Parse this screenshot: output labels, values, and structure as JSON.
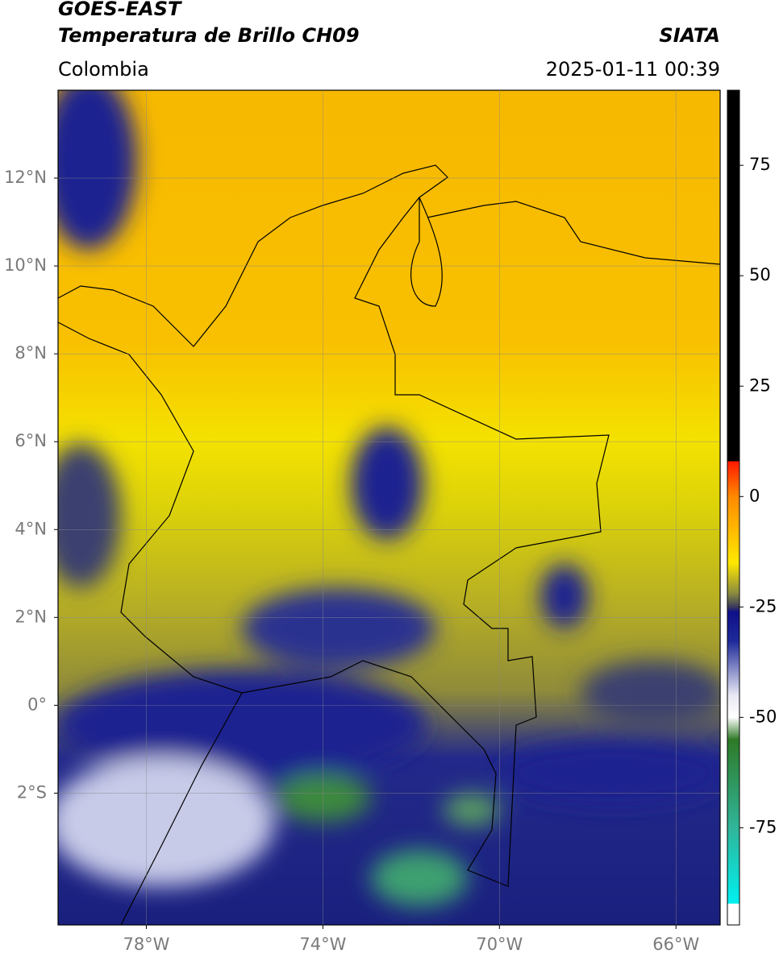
{
  "header": {
    "title": "GOES-EAST",
    "subtitle": "Temperatura de Brillo CH09",
    "source": "SIATA",
    "region": "Colombia",
    "datetime": "2025-01-11 00:39"
  },
  "map": {
    "xlim": [
      -80,
      -65
    ],
    "ylim": [
      -5,
      14
    ],
    "xticks": [
      {
        "value": -78,
        "label": "78°W"
      },
      {
        "value": -74,
        "label": "74°W"
      },
      {
        "value": -70,
        "label": "70°W"
      },
      {
        "value": -66,
        "label": "66°W"
      }
    ],
    "yticks": [
      {
        "value": 12,
        "label": "12°N"
      },
      {
        "value": 10,
        "label": "10°N"
      },
      {
        "value": 8,
        "label": "8°N"
      },
      {
        "value": 6,
        "label": "6°N"
      },
      {
        "value": 4,
        "label": "4°N"
      },
      {
        "value": 2,
        "label": "2°N"
      },
      {
        "value": 0,
        "label": "0°"
      },
      {
        "value": -2,
        "label": "2°S"
      }
    ],
    "grid": true
  },
  "colorbar": {
    "lim": [
      -97,
      92
    ],
    "ticks": [
      75,
      50,
      25,
      0,
      -25,
      -50,
      -75
    ]
  }
}
